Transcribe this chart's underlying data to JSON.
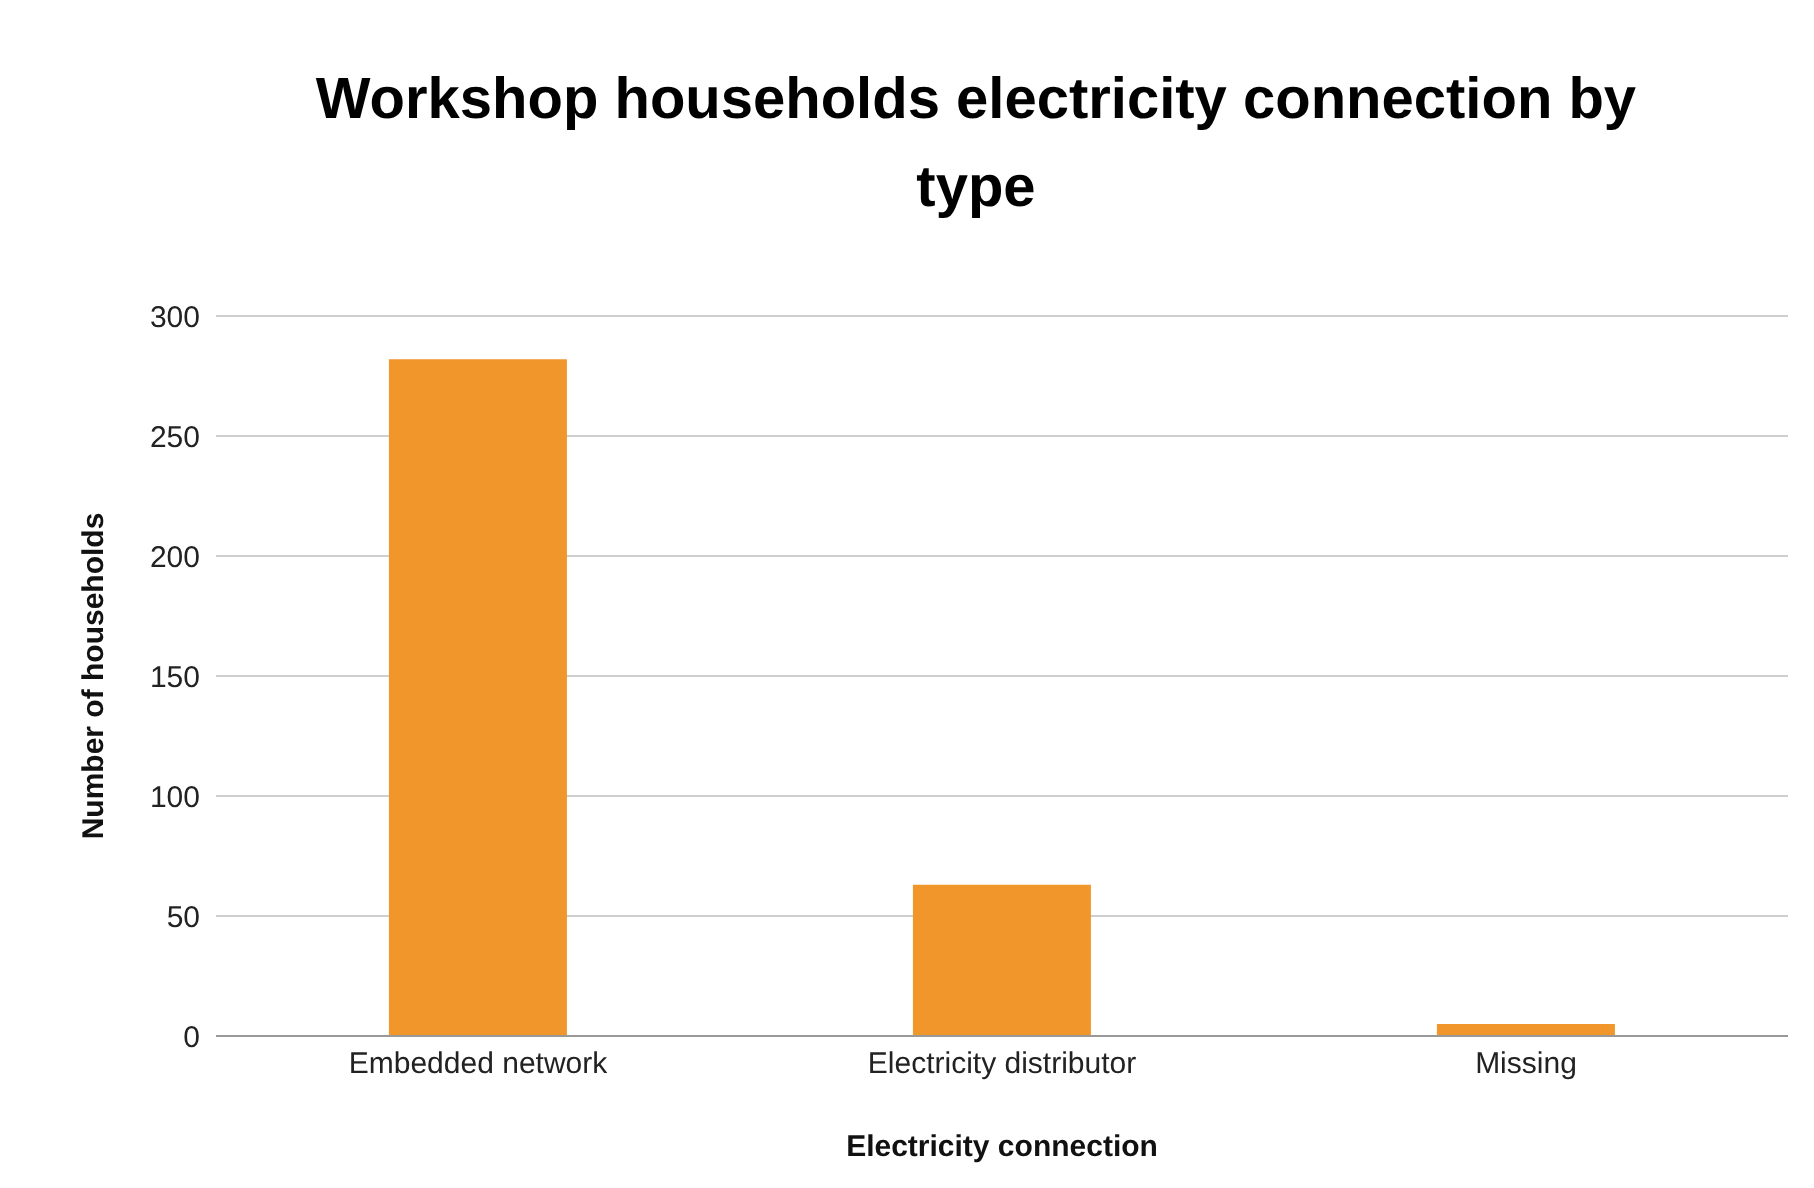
{
  "chart_data": {
    "type": "bar",
    "title": "Workshop households electricity connection by type",
    "xlabel": "Electricity connection",
    "ylabel": "Number of households",
    "categories": [
      "Embedded network",
      "Electricity distributor",
      "Missing"
    ],
    "values": [
      282,
      63,
      5
    ],
    "color": "#f0962a",
    "ylim": [
      0,
      300
    ],
    "yticks": [
      0,
      50,
      100,
      150,
      200,
      250,
      300
    ],
    "grid": "y"
  }
}
